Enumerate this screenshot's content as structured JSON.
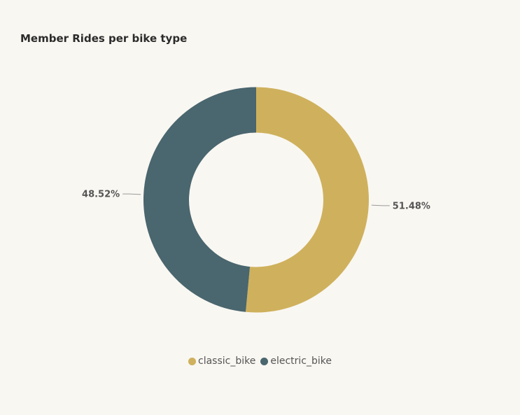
{
  "chart_data": {
    "type": "pie",
    "title": "Member Rides per bike type",
    "donut": true,
    "categories": [
      "classic_bike",
      "electric_bike"
    ],
    "values": [
      51.48,
      48.52
    ],
    "value_labels": [
      "51.48%",
      "48.52%"
    ],
    "colors": [
      "#cfb15d",
      "#4a666e"
    ],
    "legend": "bottom-center"
  }
}
